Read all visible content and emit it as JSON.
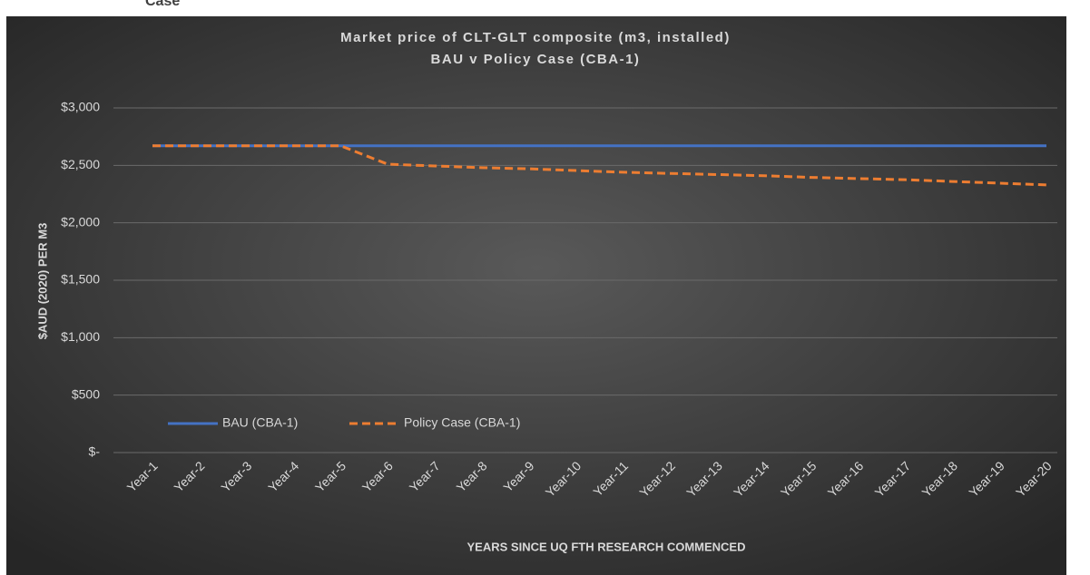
{
  "caption": "Case",
  "chart_data": {
    "type": "line",
    "title": "Market price of CLT-GLT composite (m3, installed)",
    "subtitle": "BAU v Policy Case (CBA-1)",
    "x_label": "YEARS SINCE UQ FTH RESEARCH COMMENCED",
    "y_label": "$AUD (2020) PER M3",
    "categories": [
      "Year-1",
      "Year-2",
      "Year-3",
      "Year-4",
      "Year-5",
      "Year-6",
      "Year-7",
      "Year-8",
      "Year-9",
      "Year-10",
      "Year-11",
      "Year-12",
      "Year-13",
      "Year-14",
      "Year-15",
      "Year-16",
      "Year-17",
      "Year-18",
      "Year-19",
      "Year-20"
    ],
    "series": [
      {
        "name": "BAU (CBA-1)",
        "color": "#4472c4",
        "dash": false,
        "values": [
          2670,
          2670,
          2670,
          2670,
          2670,
          2670,
          2670,
          2670,
          2670,
          2670,
          2670,
          2670,
          2670,
          2670,
          2670,
          2670,
          2670,
          2670,
          2670,
          2670
        ]
      },
      {
        "name": "Policy Case (CBA-1)",
        "color": "#ed7d31",
        "dash": true,
        "values": [
          2670,
          2670,
          2670,
          2670,
          2670,
          2510,
          2495,
          2480,
          2470,
          2455,
          2440,
          2430,
          2420,
          2410,
          2395,
          2385,
          2375,
          2360,
          2345,
          2330
        ]
      }
    ],
    "ylim": [
      0,
      3000
    ],
    "yticks": [
      {
        "value": 0,
        "label": "$-"
      },
      {
        "value": 500,
        "label": "$500"
      },
      {
        "value": 1000,
        "label": "$1,000"
      },
      {
        "value": 1500,
        "label": "$1,500"
      },
      {
        "value": 2000,
        "label": "$2,000"
      },
      {
        "value": 2500,
        "label": "$2,500"
      },
      {
        "value": 3000,
        "label": "$3,000"
      }
    ],
    "grid": true,
    "legend": "bottom-left"
  }
}
